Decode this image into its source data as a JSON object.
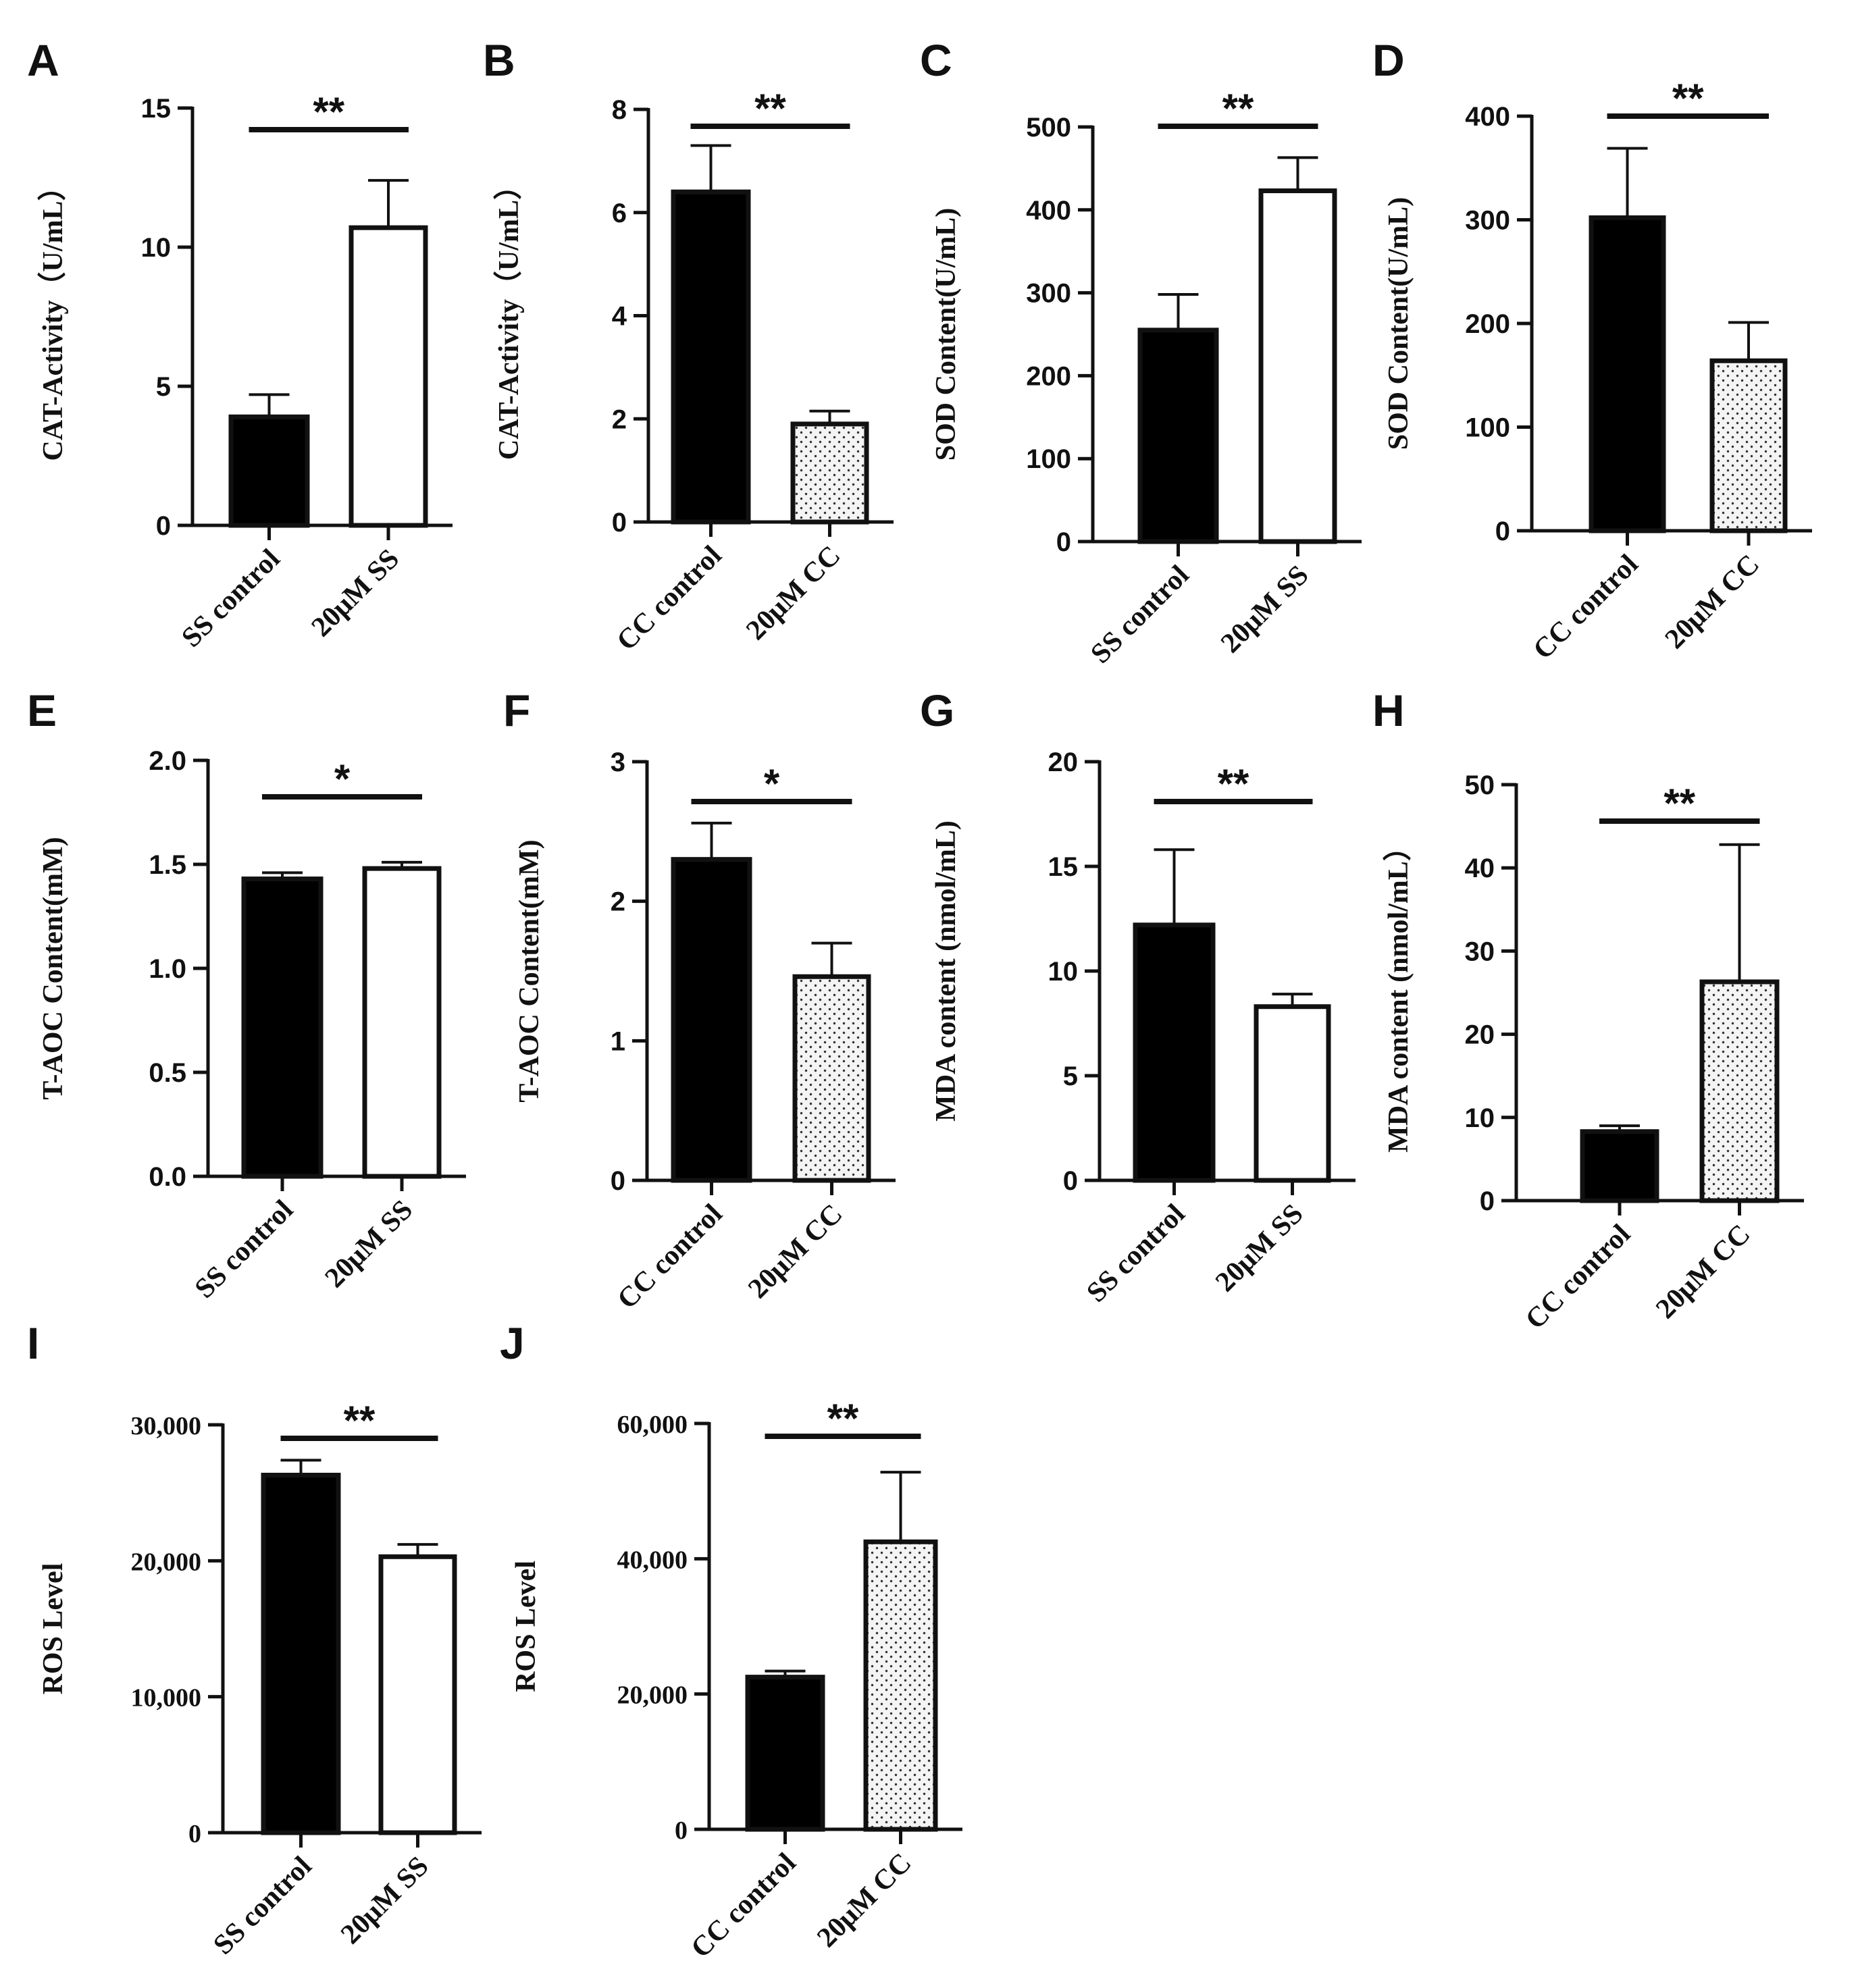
{
  "colors": {
    "control_fill": "#000000",
    "treated_open_fill": "#ffffff",
    "dot_fill": "#f4f4f4",
    "ink": "#111111"
  },
  "chart_data": [
    {
      "letter": "A",
      "type": "bar",
      "ylabel": "CAT-Activity（U/mL）",
      "ylim": [
        0,
        15
      ],
      "ticks": [
        "0",
        "5",
        "10",
        "15"
      ],
      "tick_values": [
        0,
        5,
        10,
        15
      ],
      "categories": [
        "SS control",
        "20μM SS"
      ],
      "values": [
        3.9,
        10.7
      ],
      "errors": [
        0.8,
        1.7
      ],
      "fills": [
        "solid",
        "open"
      ],
      "significance": "**"
    },
    {
      "letter": "B",
      "type": "bar",
      "ylabel": "CAT-Activity（U/mL）",
      "ylim": [
        0,
        8
      ],
      "ticks": [
        "0",
        "2",
        "4",
        "6",
        "8"
      ],
      "tick_values": [
        0,
        2,
        4,
        6,
        8
      ],
      "categories": [
        "CC control",
        "20μM CC"
      ],
      "values": [
        6.4,
        1.9
      ],
      "errors": [
        0.9,
        0.25
      ],
      "fills": [
        "solid",
        "dotted"
      ],
      "significance": "**"
    },
    {
      "letter": "C",
      "type": "bar",
      "ylabel": "SOD Content(U/mL)",
      "ylim": [
        0,
        500
      ],
      "ticks": [
        "0",
        "100",
        "200",
        "300",
        "400",
        "500"
      ],
      "tick_values": [
        0,
        100,
        200,
        300,
        400,
        500
      ],
      "categories": [
        "SS control",
        "20μM SS"
      ],
      "values": [
        255,
        423
      ],
      "errors": [
        43,
        40
      ],
      "fills": [
        "solid",
        "open"
      ],
      "significance": "**"
    },
    {
      "letter": "D",
      "type": "bar",
      "ylabel": "SOD Content(U/mL)",
      "ylim": [
        0,
        400
      ],
      "ticks": [
        "0",
        "100",
        "200",
        "300",
        "400"
      ],
      "tick_values": [
        0,
        100,
        200,
        300,
        400
      ],
      "categories": [
        "CC control",
        "20μM CC"
      ],
      "values": [
        302,
        164
      ],
      "errors": [
        67,
        37
      ],
      "fills": [
        "solid",
        "dotted"
      ],
      "significance": "**"
    },
    {
      "letter": "E",
      "type": "bar",
      "ylabel": "T-AOC Content(mM)",
      "ylim": [
        0,
        2
      ],
      "ticks": [
        "0.0",
        "0.5",
        "1.0",
        "1.5",
        "2.0"
      ],
      "tick_values": [
        0,
        0.5,
        1,
        1.5,
        2
      ],
      "categories": [
        "SS control",
        "20μM SS"
      ],
      "values": [
        1.43,
        1.48
      ],
      "errors": [
        0.03,
        0.03
      ],
      "fills": [
        "solid",
        "open"
      ],
      "significance": "*"
    },
    {
      "letter": "F",
      "type": "bar",
      "ylabel": "T-AOC Content(mM)",
      "ylim": [
        0,
        3
      ],
      "ticks": [
        "0",
        "1",
        "2",
        "3"
      ],
      "tick_values": [
        0,
        1,
        2,
        3
      ],
      "categories": [
        "CC control",
        "20μM CC"
      ],
      "values": [
        2.3,
        1.46
      ],
      "errors": [
        0.26,
        0.24
      ],
      "fills": [
        "solid",
        "dotted"
      ],
      "significance": "*"
    },
    {
      "letter": "G",
      "type": "bar",
      "ylabel": "MDA content (nmol/mL)",
      "ylim": [
        0,
        20
      ],
      "ticks": [
        "0",
        "5",
        "10",
        "15",
        "20"
      ],
      "tick_values": [
        0,
        5,
        10,
        15,
        20
      ],
      "categories": [
        "SS control",
        "20μM SS"
      ],
      "values": [
        12.2,
        8.3
      ],
      "errors": [
        3.6,
        0.6
      ],
      "fills": [
        "solid",
        "open"
      ],
      "significance": "**"
    },
    {
      "letter": "H",
      "type": "bar",
      "ylabel": "MDA content (nmol/mL）",
      "ylim": [
        0,
        50
      ],
      "ticks": [
        "0",
        "10",
        "20",
        "30",
        "40",
        "50"
      ],
      "tick_values": [
        0,
        10,
        20,
        30,
        40,
        50
      ],
      "categories": [
        "CC control",
        "20μM CC"
      ],
      "values": [
        8.3,
        26.3
      ],
      "errors": [
        0.7,
        16.5
      ],
      "fills": [
        "solid",
        "dotted"
      ],
      "significance": "**"
    },
    {
      "letter": "I",
      "type": "bar",
      "ylabel": "ROS Level",
      "ylim": [
        0,
        30000
      ],
      "ticks": [
        "0",
        "10,000",
        "20,000",
        "30,000"
      ],
      "tick_values": [
        0,
        10000,
        20000,
        30000
      ],
      "categories": [
        "SS control",
        "20μM SS"
      ],
      "values": [
        26300,
        20300
      ],
      "errors": [
        1100,
        900
      ],
      "fills": [
        "solid",
        "open"
      ],
      "significance": "**"
    },
    {
      "letter": "J",
      "type": "bar",
      "ylabel": "ROS Level",
      "ylim": [
        0,
        60000
      ],
      "ticks": [
        "0",
        "20,000",
        "40,000",
        "60,000"
      ],
      "tick_values": [
        0,
        20000,
        40000,
        60000
      ],
      "categories": [
        "CC control",
        "20μM CC"
      ],
      "values": [
        22500,
        42500
      ],
      "errors": [
        900,
        10300
      ],
      "fills": [
        "solid",
        "dotted"
      ],
      "significance": "**"
    }
  ]
}
